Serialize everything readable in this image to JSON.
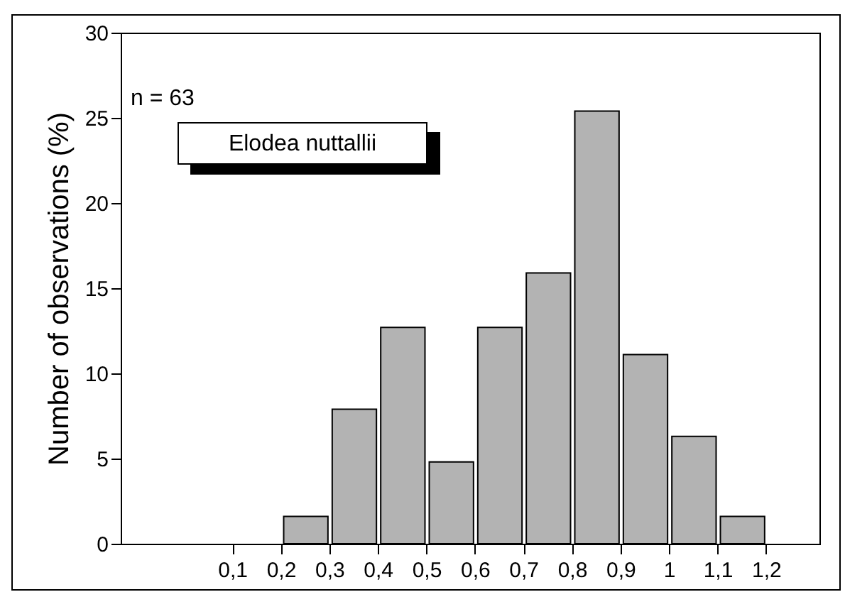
{
  "chart_data": {
    "type": "histogram",
    "ylabel": "Number of observations (%)",
    "annotations": [
      "n = 63",
      "Elodea nuttallii"
    ],
    "bins": [
      0.2,
      0.3,
      0.4,
      0.5,
      0.6,
      0.7,
      0.8,
      0.9,
      1.0,
      1.1,
      1.2
    ],
    "values": [
      1.6,
      7.9,
      12.7,
      4.8,
      12.7,
      15.9,
      25.4,
      11.1,
      6.3,
      1.6
    ],
    "color": "#b3b3b3",
    "xlim": [
      -0.13,
      1.31
    ],
    "xticks": [
      {
        "value": 0.1,
        "label": "0,1"
      },
      {
        "value": 0.2,
        "label": "0,2"
      },
      {
        "value": 0.3,
        "label": "0,3"
      },
      {
        "value": 0.4,
        "label": "0,4"
      },
      {
        "value": 0.5,
        "label": "0,5"
      },
      {
        "value": 0.6,
        "label": "0,6"
      },
      {
        "value": 0.7,
        "label": "0,7"
      },
      {
        "value": 0.8,
        "label": "0,8"
      },
      {
        "value": 0.9,
        "label": "0,9"
      },
      1,
      {
        "value": 1.1,
        "label": "1,1"
      },
      {
        "value": 1.2,
        "label": "1,2"
      }
    ],
    "ylim": [
      0,
      30
    ],
    "yticks": [
      0,
      5,
      10,
      15,
      20,
      25,
      30
    ],
    "grid": false
  }
}
